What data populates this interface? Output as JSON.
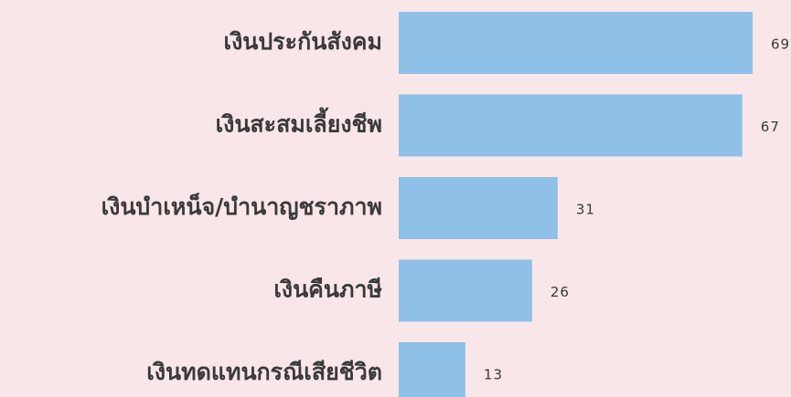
{
  "chart_data": {
    "type": "bar",
    "orientation": "horizontal",
    "categories": [
      "เงินประกันสังคม",
      "เงินสะสมเลี้ยงชีพ",
      "เงินบำเหน็จ/บำนาญชราภาพ",
      "เงินคืนภาษี",
      "เงินทดแทนกรณีเสียชีวิต"
    ],
    "values": [
      69,
      67,
      31,
      26,
      13
    ],
    "color": "#8fc0e8"
  }
}
